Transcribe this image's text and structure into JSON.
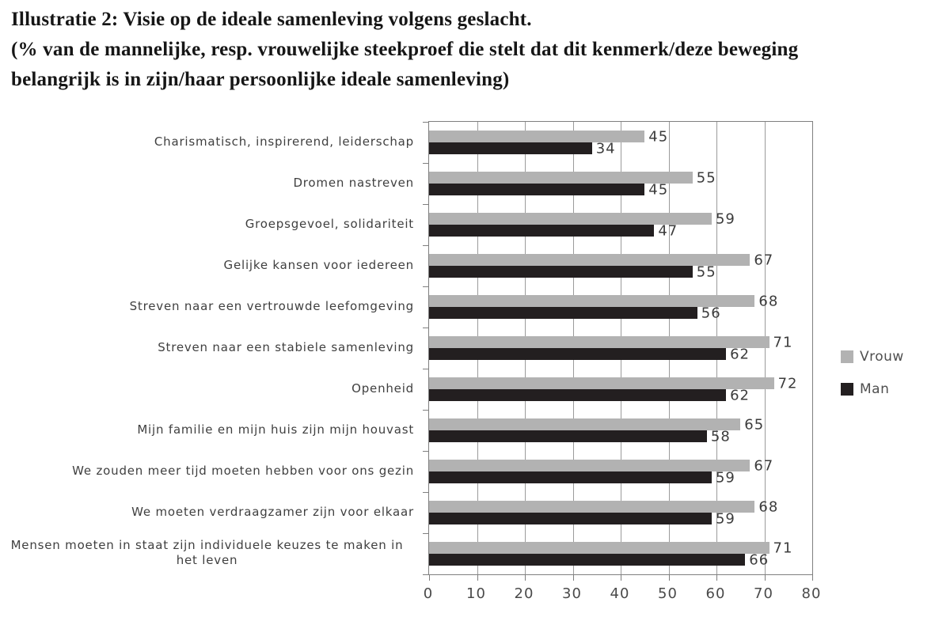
{
  "title": {
    "line1": "Illustratie 2: Visie op de ideale samenleving volgens geslacht.",
    "line2": "(% van de mannelijke, resp. vrouwelijke steekproef die stelt dat dit kenmerk/deze beweging",
    "line3": "belangrijk is in zijn/haar persoonlijke ideale samenleving)"
  },
  "legend": {
    "items": [
      {
        "label": "Vrouw",
        "color": "#b2b2b2"
      },
      {
        "label": "Man",
        "color": "#231f20"
      }
    ]
  },
  "chart_data": {
    "type": "bar",
    "orientation": "horizontal",
    "title": "Illustratie 2: Visie op de ideale samenleving volgens geslacht.",
    "subtitle": "(% van de mannelijke, resp. vrouwelijke steekproef die stelt dat dit kenmerk/deze beweging belangrijk is in zijn/haar persoonlijke ideale samenleving)",
    "categories": [
      "Charismatisch, inspirerend, leiderschap",
      "Dromen nastreven",
      "Groepsgevoel, solidariteit",
      "Gelijke kansen voor iedereen",
      "Streven naar een vertrouwde leefomgeving",
      "Streven naar een stabiele samenleving",
      "Openheid",
      "Mijn familie en mijn huis zijn mijn houvast",
      "We zouden meer tijd moeten hebben voor ons gezin",
      "We moeten verdraagzamer zijn voor elkaar",
      "Mensen moeten in staat zijn individuele keuzes te maken in het leven"
    ],
    "series": [
      {
        "name": "Vrouw",
        "color": "#b2b2b2",
        "values": [
          45,
          55,
          59,
          67,
          68,
          71,
          72,
          65,
          67,
          68,
          71
        ]
      },
      {
        "name": "Man",
        "color": "#231f20",
        "values": [
          34,
          45,
          47,
          55,
          56,
          62,
          62,
          58,
          59,
          59,
          66
        ]
      }
    ],
    "xlim": [
      0,
      80
    ],
    "xticks": [
      0,
      10,
      20,
      30,
      40,
      50,
      60,
      70,
      80
    ],
    "grid": true,
    "value_labels": true,
    "legend_position": "right-middle",
    "colors": {
      "grid": "#9b9b9b",
      "axis": "#7f7f7f",
      "category_text": "#3f3f3f",
      "value_text": "#3c3c3c",
      "tick_text": "#4a4a4a"
    }
  }
}
